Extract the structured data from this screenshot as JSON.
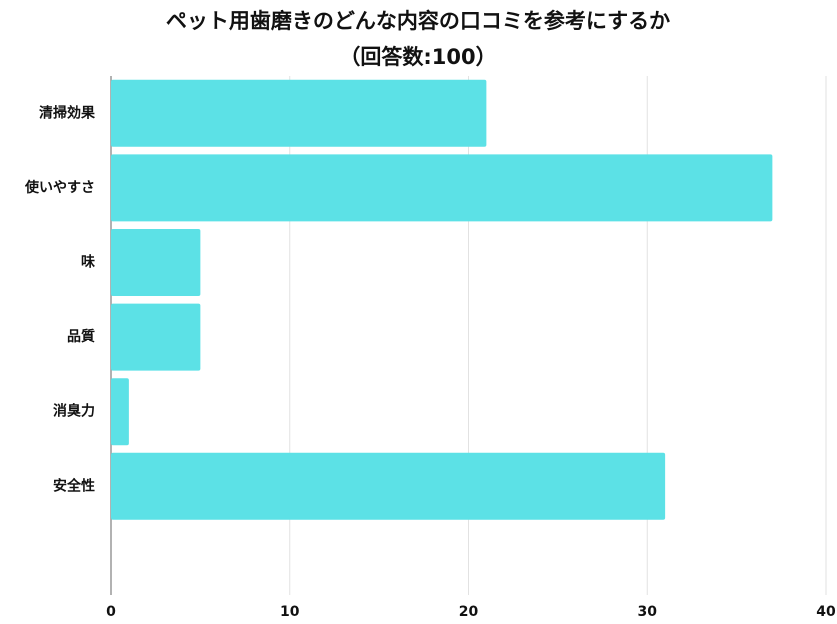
{
  "chart_data": {
    "type": "bar",
    "orientation": "horizontal",
    "title": "ペット用歯磨きのどんな内容の口コミを参考にするか",
    "subtitle": "（回答数:100）",
    "categories": [
      "清掃効果",
      "使いやすさ",
      "味",
      "品質",
      "消臭力",
      "安全性"
    ],
    "values": [
      21,
      37,
      5,
      5,
      1,
      31
    ],
    "color": "#5ce1e6",
    "xlim": [
      0,
      40
    ],
    "xticks": [
      0,
      10,
      20,
      30,
      40
    ],
    "grid": true
  }
}
